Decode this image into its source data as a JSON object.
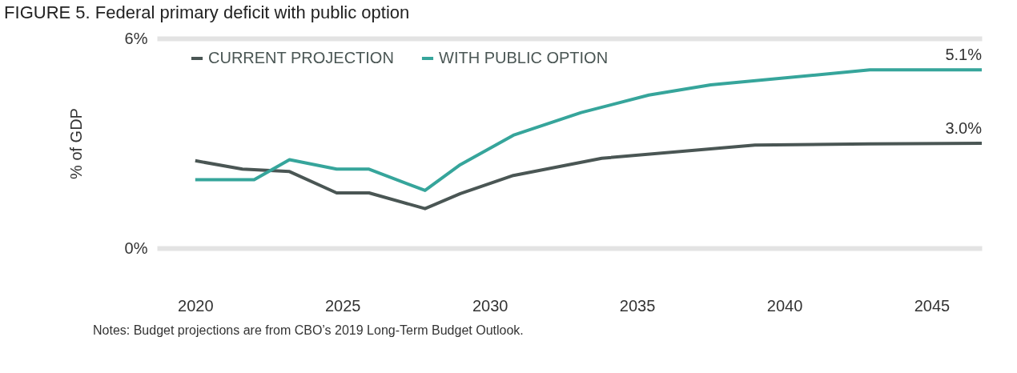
{
  "chart_data": {
    "type": "line",
    "title": "FIGURE 5. Federal primary deficit with public option",
    "ylabel": "% of GDP",
    "xlim": [
      2018.7,
      2046.7
    ],
    "xticks": [
      2020,
      2025,
      2030,
      2035,
      2040,
      2045
    ],
    "ylim": [
      0,
      6
    ],
    "yticks": [
      {
        "value": 0,
        "label": "0%"
      },
      {
        "value": 6,
        "label": "6%"
      }
    ],
    "grid": "y",
    "legend": "top left",
    "marker": "none",
    "line_style": "solid",
    "series": [
      {
        "name": "CURRENT PROJECTION",
        "color": "#4a5654",
        "x": [
          2020,
          2021.6,
          2023.2,
          2024.8,
          2025.9,
          2027.8,
          2029.0,
          2030.8,
          2033.8,
          2039.0,
          2042.9,
          2046.7
        ],
        "values": [
          2.5,
          2.26,
          2.19,
          1.58,
          1.58,
          1.13,
          1.56,
          2.08,
          2.57,
          2.95,
          2.98,
          3.0
        ]
      },
      {
        "name": "WITH PUBLIC OPTION",
        "color": "#36a59b",
        "x": [
          2020,
          2022.0,
          2023.2,
          2024.8,
          2025.9,
          2027.8,
          2029.0,
          2030.8,
          2033.1,
          2035.4,
          2037.5,
          2042.9,
          2046.7
        ],
        "values": [
          1.96,
          1.96,
          2.53,
          2.26,
          2.26,
          1.65,
          2.39,
          3.23,
          3.88,
          4.38,
          4.67,
          5.1,
          5.1
        ]
      }
    ],
    "annotations": [
      {
        "text": "5.1%",
        "x": 2046.7,
        "y": 5.1
      },
      {
        "text": "3.0%",
        "x": 2046.7,
        "y": 3.0
      },
      "Notes: Budget projections are from CBO’s 2019 Long-Term Budget Outlook."
    ]
  }
}
